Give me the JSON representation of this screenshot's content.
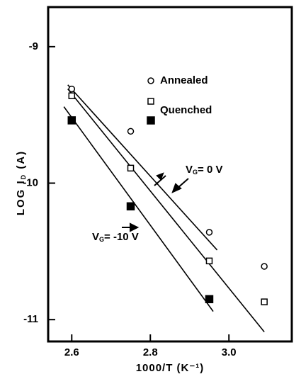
{
  "chart_data": {
    "type": "scatter",
    "xlabel": "1000/T (K⁻¹)",
    "ylabel": {
      "text": "LOG I",
      "sub": "D",
      "rest": " (A)"
    },
    "xlim": [
      2.54,
      3.16
    ],
    "ylim": [
      -11.16,
      -8.71
    ],
    "xticks": [
      2.6,
      2.8,
      {
        "value": 3,
        "label": "3.0"
      }
    ],
    "yticks": [
      -9,
      -10,
      -11
    ],
    "series": [
      {
        "name": "Annealed",
        "marker": "circle",
        "color": "#000",
        "x": [
          2.6,
          2.75,
          2.95,
          3.09
        ],
        "values": [
          -9.31,
          -9.62,
          -10.36,
          -10.61
        ]
      },
      {
        "name": "Quenched",
        "marker": "square",
        "color": "#000",
        "x": [
          2.6,
          2.75,
          2.95,
          3.09
        ],
        "values": [
          -9.36,
          -9.89,
          -10.57,
          -10.87
        ]
      },
      {
        "marker": "filled-square",
        "color": "#000",
        "x": [
          2.6,
          2.75,
          2.95
        ],
        "values": [
          -9.54,
          -10.17,
          -10.85
        ]
      }
    ],
    "lines": [
      {
        "x": [
          2.59,
          2.97
        ],
        "values": [
          -9.28,
          -10.49
        ]
      },
      {
        "x": [
          2.59,
          3.09
        ],
        "values": [
          -9.31,
          -11.09
        ]
      },
      {
        "x": [
          2.58,
          2.96
        ],
        "values": [
          -9.44,
          -10.94
        ]
      }
    ],
    "annotations": [
      {
        "text": "V",
        "sub": "G",
        "rest": "= 0 V"
      },
      {
        "text": "V",
        "sub": "G",
        "rest": "= -10 V"
      }
    ]
  }
}
